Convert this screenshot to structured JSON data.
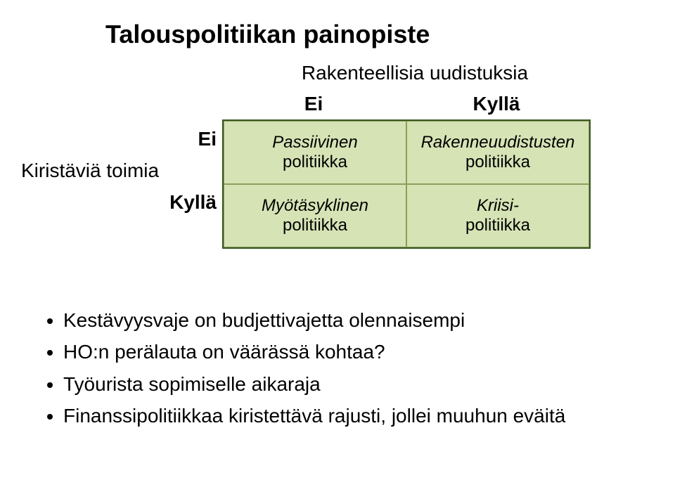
{
  "title": "Talouspolitiikan painopiste",
  "matrix": {
    "top_label": "Rakenteellisia uudistuksia",
    "col_headers": [
      "Ei",
      "Kyllä"
    ],
    "row_label": "Kiristäviä toimia",
    "row_headers": [
      "Ei",
      "Kyllä"
    ],
    "cells": [
      {
        "italic": "Passiivinen",
        "plain": "politiikka"
      },
      {
        "italic": "Rakenneuudistusten",
        "plain": "politiikka"
      },
      {
        "italic": "Myötäsyklinen",
        "plain": "politiikka"
      },
      {
        "italic": "Kriisi-",
        "plain": "politiikka"
      }
    ],
    "colors": {
      "cell_fill": "#d6e3b5",
      "cell_border": "#8aa05a",
      "outer_border": "#385723"
    }
  },
  "bullets": [
    "Kestävyysvaje on budjettivajetta olennaisempi",
    "HO:n perälauta on väärässä kohtaa?",
    "Työurista sopimiselle aikaraja",
    "Finanssipolitiikkaa kiristettävä rajusti, jollei muuhun eväitä"
  ]
}
